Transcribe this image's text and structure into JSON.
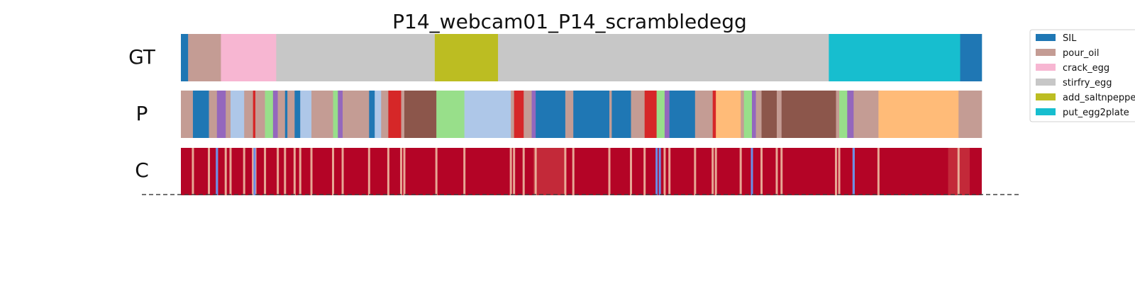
{
  "chart_data": {
    "type": "segmentation-timeline",
    "title": "P14_webcam01_P14_scrambledegg",
    "rows": [
      "GT",
      "P",
      "C"
    ],
    "legend": [
      {
        "label": "SIL",
        "color": "#1f77b4"
      },
      {
        "label": "pour_oil",
        "color": "#c49c94"
      },
      {
        "label": "crack_egg",
        "color": "#f7b6d2"
      },
      {
        "label": "stirfry_egg",
        "color": "#c7c7c7"
      },
      {
        "label": "add_saltnpepper",
        "color": "#bcbd22"
      },
      {
        "label": "put_egg2plate",
        "color": "#17becf"
      }
    ],
    "gt_segments": [
      {
        "start": 0.0,
        "end": 0.009,
        "color": "#1f77b4"
      },
      {
        "start": 0.009,
        "end": 0.05,
        "color": "#c49c94"
      },
      {
        "start": 0.05,
        "end": 0.119,
        "color": "#f7b6d2"
      },
      {
        "start": 0.119,
        "end": 0.317,
        "color": "#c7c7c7"
      },
      {
        "start": 0.317,
        "end": 0.396,
        "color": "#bcbd22"
      },
      {
        "start": 0.396,
        "end": 0.809,
        "color": "#c7c7c7"
      },
      {
        "start": 0.809,
        "end": 0.973,
        "color": "#17becf"
      },
      {
        "start": 0.973,
        "end": 1.0,
        "color": "#1f77b4"
      }
    ],
    "p_segments": [
      {
        "start": 0.0,
        "end": 0.015,
        "color": "#c49c94"
      },
      {
        "start": 0.015,
        "end": 0.035,
        "color": "#1f77b4"
      },
      {
        "start": 0.035,
        "end": 0.045,
        "color": "#c49c94"
      },
      {
        "start": 0.045,
        "end": 0.056,
        "color": "#9467bd"
      },
      {
        "start": 0.056,
        "end": 0.062,
        "color": "#c49c94"
      },
      {
        "start": 0.062,
        "end": 0.079,
        "color": "#aec7e8"
      },
      {
        "start": 0.079,
        "end": 0.09,
        "color": "#c49c94"
      },
      {
        "start": 0.09,
        "end": 0.093,
        "color": "#d62728"
      },
      {
        "start": 0.093,
        "end": 0.105,
        "color": "#c49c94"
      },
      {
        "start": 0.105,
        "end": 0.115,
        "color": "#98df8a"
      },
      {
        "start": 0.115,
        "end": 0.121,
        "color": "#9467bd"
      },
      {
        "start": 0.121,
        "end": 0.13,
        "color": "#c49c94"
      },
      {
        "start": 0.13,
        "end": 0.133,
        "color": "#1f77b4"
      },
      {
        "start": 0.133,
        "end": 0.142,
        "color": "#c49c94"
      },
      {
        "start": 0.142,
        "end": 0.149,
        "color": "#1f77b4"
      },
      {
        "start": 0.149,
        "end": 0.163,
        "color": "#aec7e8"
      },
      {
        "start": 0.163,
        "end": 0.19,
        "color": "#c49c94"
      },
      {
        "start": 0.19,
        "end": 0.196,
        "color": "#98df8a"
      },
      {
        "start": 0.196,
        "end": 0.202,
        "color": "#9467bd"
      },
      {
        "start": 0.202,
        "end": 0.235,
        "color": "#c49c94"
      },
      {
        "start": 0.235,
        "end": 0.242,
        "color": "#1f77b4"
      },
      {
        "start": 0.242,
        "end": 0.25,
        "color": "#aec7e8"
      },
      {
        "start": 0.25,
        "end": 0.259,
        "color": "#c49c94"
      },
      {
        "start": 0.259,
        "end": 0.275,
        "color": "#d62728"
      },
      {
        "start": 0.275,
        "end": 0.279,
        "color": "#c49c94"
      },
      {
        "start": 0.279,
        "end": 0.319,
        "color": "#8c564b"
      },
      {
        "start": 0.319,
        "end": 0.354,
        "color": "#98df8a"
      },
      {
        "start": 0.354,
        "end": 0.412,
        "color": "#aec7e8"
      },
      {
        "start": 0.412,
        "end": 0.416,
        "color": "#c49c94"
      },
      {
        "start": 0.416,
        "end": 0.428,
        "color": "#d62728"
      },
      {
        "start": 0.428,
        "end": 0.438,
        "color": "#c49c94"
      },
      {
        "start": 0.438,
        "end": 0.443,
        "color": "#9467bd"
      },
      {
        "start": 0.443,
        "end": 0.48,
        "color": "#1f77b4"
      },
      {
        "start": 0.48,
        "end": 0.49,
        "color": "#c49c94"
      },
      {
        "start": 0.49,
        "end": 0.535,
        "color": "#1f77b4"
      },
      {
        "start": 0.535,
        "end": 0.538,
        "color": "#c49c94"
      },
      {
        "start": 0.538,
        "end": 0.562,
        "color": "#1f77b4"
      },
      {
        "start": 0.562,
        "end": 0.579,
        "color": "#c49c94"
      },
      {
        "start": 0.579,
        "end": 0.594,
        "color": "#d62728"
      },
      {
        "start": 0.594,
        "end": 0.604,
        "color": "#98df8a"
      },
      {
        "start": 0.604,
        "end": 0.61,
        "color": "#9467bd"
      },
      {
        "start": 0.61,
        "end": 0.642,
        "color": "#1f77b4"
      },
      {
        "start": 0.642,
        "end": 0.65,
        "color": "#c49c94"
      },
      {
        "start": 0.65,
        "end": 0.664,
        "color": "#c49c94"
      },
      {
        "start": 0.664,
        "end": 0.668,
        "color": "#d62728"
      },
      {
        "start": 0.668,
        "end": 0.699,
        "color": "#ffbb78"
      },
      {
        "start": 0.699,
        "end": 0.703,
        "color": "#c49c94"
      },
      {
        "start": 0.703,
        "end": 0.713,
        "color": "#98df8a"
      },
      {
        "start": 0.713,
        "end": 0.718,
        "color": "#9467bd"
      },
      {
        "start": 0.718,
        "end": 0.725,
        "color": "#c49c94"
      },
      {
        "start": 0.725,
        "end": 0.744,
        "color": "#8c564b"
      },
      {
        "start": 0.744,
        "end": 0.75,
        "color": "#c49c94"
      },
      {
        "start": 0.75,
        "end": 0.818,
        "color": "#8c564b"
      },
      {
        "start": 0.818,
        "end": 0.822,
        "color": "#c49c94"
      },
      {
        "start": 0.822,
        "end": 0.832,
        "color": "#98df8a"
      },
      {
        "start": 0.832,
        "end": 0.84,
        "color": "#9467bd"
      },
      {
        "start": 0.84,
        "end": 0.871,
        "color": "#c49c94"
      },
      {
        "start": 0.871,
        "end": 0.971,
        "color": "#ffbb78"
      },
      {
        "start": 0.971,
        "end": 1.0,
        "color": "#c49c94"
      }
    ],
    "c_base_color": "#b40426",
    "c_light_lines": [
      0.015,
      0.035,
      0.045,
      0.056,
      0.062,
      0.079,
      0.09,
      0.093,
      0.105,
      0.121,
      0.13,
      0.142,
      0.149,
      0.163,
      0.19,
      0.202,
      0.235,
      0.259,
      0.275,
      0.279,
      0.319,
      0.354,
      0.412,
      0.416,
      0.428,
      0.443,
      0.48,
      0.49,
      0.535,
      0.562,
      0.579,
      0.604,
      0.61,
      0.642,
      0.664,
      0.668,
      0.699,
      0.713,
      0.725,
      0.744,
      0.75,
      0.818,
      0.822,
      0.84,
      0.871,
      0.971
    ],
    "c_blue_lines": [
      0.045,
      0.092,
      0.594,
      0.598,
      0.713,
      0.84
    ],
    "c_light_bands": [
      {
        "start": 0.44,
        "end": 0.48
      },
      {
        "start": 0.958,
        "end": 0.985
      }
    ]
  }
}
